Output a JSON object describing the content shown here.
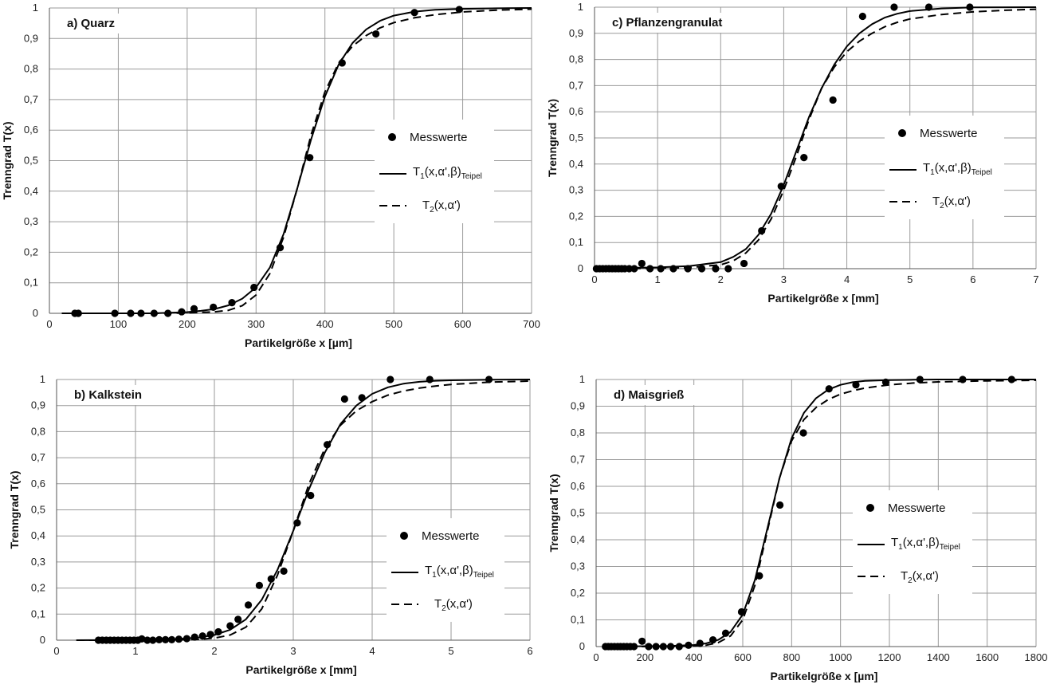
{
  "figure": {
    "legend": {
      "measured": "Messwerte",
      "t1_main": "T",
      "t1_sub": "1",
      "t1_args": "(x,α',β)",
      "t1_sub2": "Teipel",
      "t2_main": "T",
      "t2_sub": "2",
      "t2_args": "(x,α')"
    },
    "colors": {
      "line": "#000000",
      "grid": "#9a9a9a",
      "marker": "#000000"
    }
  },
  "chart_data": [
    {
      "id": "a",
      "type": "line",
      "title": "a) Quarz",
      "xlabel": "Partikelgröße x [µm]",
      "ylabel": "Trenngrad T(x)",
      "xlim": [
        0,
        700
      ],
      "ylim": [
        0,
        1
      ],
      "xticks": [
        0,
        100,
        200,
        300,
        400,
        500,
        600,
        700
      ],
      "xtick_labels": [
        "0",
        "100",
        "200",
        "300",
        "400",
        "500",
        "600",
        "700"
      ],
      "yticks": [
        0,
        0.1,
        0.2,
        0.3,
        0.4,
        0.5,
        0.6,
        0.7,
        0.8,
        0.9,
        1
      ],
      "ytick_labels": [
        "0",
        "0,1",
        "0,2",
        "0,3",
        "0,4",
        "0,5",
        "0,6",
        "0,7",
        "0,8",
        "0,9",
        "1"
      ],
      "grid": "both",
      "legend_position": "right-middle",
      "series": [
        {
          "name": "Messwerte",
          "style": "markers",
          "x": [
            37,
            42,
            95,
            118,
            133,
            152,
            172,
            192,
            210,
            238,
            265,
            297,
            335,
            378,
            425,
            474,
            530,
            595
          ],
          "y": [
            0,
            0,
            0,
            0,
            0,
            0,
            0,
            0.005,
            0.015,
            0.02,
            0.035,
            0.085,
            0.215,
            0.51,
            0.82,
            0.915,
            0.985,
            0.995
          ]
        },
        {
          "name": "T1(x,α',β)Teipel",
          "style": "solid",
          "x": [
            18,
            100,
            150,
            200,
            220,
            240,
            260,
            280,
            300,
            320,
            340,
            360,
            380,
            400,
            420,
            440,
            460,
            480,
            500,
            530,
            560,
            600,
            650,
            700
          ],
          "y": [
            0,
            0,
            0,
            0.004,
            0.008,
            0.014,
            0.026,
            0.048,
            0.085,
            0.15,
            0.26,
            0.41,
            0.57,
            0.71,
            0.815,
            0.885,
            0.93,
            0.958,
            0.975,
            0.988,
            0.994,
            0.997,
            0.999,
            1
          ]
        },
        {
          "name": "T2(x,α')",
          "style": "dashed",
          "x": [
            18,
            100,
            150,
            200,
            240,
            260,
            280,
            300,
            320,
            340,
            360,
            380,
            400,
            420,
            440,
            460,
            480,
            500,
            530,
            560,
            600,
            650,
            700
          ],
          "y": [
            0,
            0,
            0,
            0.001,
            0.005,
            0.01,
            0.025,
            0.06,
            0.13,
            0.25,
            0.41,
            0.585,
            0.725,
            0.82,
            0.875,
            0.91,
            0.935,
            0.952,
            0.968,
            0.978,
            0.987,
            0.993,
            0.996
          ]
        }
      ]
    },
    {
      "id": "b",
      "type": "line",
      "title": "b) Kalkstein",
      "xlabel": "Partikelgröße x [mm]",
      "ylabel": "Trenngrad T(x)",
      "xlim": [
        0,
        6
      ],
      "ylim": [
        0,
        1
      ],
      "xticks": [
        0,
        1,
        2,
        3,
        4,
        5,
        6
      ],
      "xtick_labels": [
        "0",
        "1",
        "2",
        "3",
        "4",
        "5",
        "6"
      ],
      "yticks": [
        0,
        0.1,
        0.2,
        0.3,
        0.4,
        0.5,
        0.6,
        0.7,
        0.8,
        0.9,
        1
      ],
      "ytick_labels": [
        "0",
        "0,1",
        "0,2",
        "0,3",
        "0,4",
        "0,5",
        "0,6",
        "0,7",
        "0,8",
        "0,9",
        "1"
      ],
      "grid": "both",
      "legend_position": "right-bottom",
      "series": [
        {
          "name": "Messwerte",
          "style": "markers",
          "x": [
            0.53,
            0.58,
            0.63,
            0.68,
            0.73,
            0.78,
            0.83,
            0.88,
            0.93,
            0.98,
            1.03,
            1.08,
            1.15,
            1.22,
            1.3,
            1.38,
            1.46,
            1.55,
            1.65,
            1.75,
            1.85,
            1.95,
            2.05,
            2.2,
            2.3,
            2.43,
            2.57,
            2.72,
            2.88,
            3.05,
            3.22,
            3.43,
            3.65,
            3.87,
            4.23,
            4.73,
            5.48
          ],
          "y": [
            0,
            0,
            0,
            0,
            0,
            0,
            0,
            0,
            0,
            0,
            0,
            0.005,
            0,
            0,
            0.002,
            0.002,
            0.002,
            0.004,
            0.006,
            0.012,
            0.016,
            0.022,
            0.032,
            0.055,
            0.08,
            0.135,
            0.21,
            0.235,
            0.265,
            0.45,
            0.555,
            0.75,
            0.925,
            0.93,
            1,
            1,
            1
          ]
        },
        {
          "name": "T1(x,α',β)Teipel",
          "style": "solid",
          "x": [
            0.25,
            1.0,
            1.5,
            1.8,
            2.0,
            2.2,
            2.4,
            2.6,
            2.8,
            3.0,
            3.2,
            3.4,
            3.6,
            3.8,
            4.0,
            4.2,
            4.4,
            4.6,
            4.8,
            5.0,
            5.5,
            6.0
          ],
          "y": [
            0,
            0.001,
            0.004,
            0.01,
            0.02,
            0.04,
            0.08,
            0.155,
            0.27,
            0.42,
            0.58,
            0.72,
            0.83,
            0.9,
            0.945,
            0.97,
            0.984,
            0.991,
            0.995,
            0.997,
            0.999,
            1
          ]
        },
        {
          "name": "T2(x,α')",
          "style": "dashed",
          "x": [
            0.25,
            1.0,
            1.5,
            1.8,
            2.0,
            2.2,
            2.4,
            2.6,
            2.8,
            3.0,
            3.2,
            3.4,
            3.6,
            3.8,
            4.0,
            4.2,
            4.4,
            4.6,
            4.8,
            5.0,
            5.5,
            6.0
          ],
          "y": [
            0,
            0,
            0.001,
            0.003,
            0.008,
            0.02,
            0.05,
            0.12,
            0.25,
            0.42,
            0.6,
            0.735,
            0.825,
            0.88,
            0.915,
            0.94,
            0.956,
            0.967,
            0.975,
            0.981,
            0.99,
            0.994
          ]
        }
      ]
    },
    {
      "id": "c",
      "type": "line",
      "title": "c) Pflanzengranulat",
      "xlabel": "Partikelgröße x [mm]",
      "ylabel": "Trenngrad T(x)",
      "xlim": [
        0,
        7
      ],
      "ylim": [
        0,
        1
      ],
      "xticks": [
        0,
        1,
        2,
        3,
        4,
        5,
        6,
        7
      ],
      "xtick_labels": [
        "0",
        "1",
        "2",
        "3",
        "4",
        "5",
        "6",
        "7"
      ],
      "yticks": [
        0,
        0.1,
        0.2,
        0.3,
        0.4,
        0.5,
        0.6,
        0.7,
        0.8,
        0.9,
        1
      ],
      "ytick_labels": [
        "0",
        "0,1",
        "0,2",
        "0,3",
        "0,4",
        "0,5",
        "0,6",
        "0,7",
        "0,8",
        "0,9",
        "1"
      ],
      "grid": "both",
      "legend_position": "right-middle",
      "series": [
        {
          "name": "Messwerte",
          "style": "markers",
          "x": [
            0.03,
            0.08,
            0.13,
            0.18,
            0.23,
            0.28,
            0.33,
            0.38,
            0.43,
            0.48,
            0.55,
            0.63,
            0.75,
            0.88,
            1.05,
            1.25,
            1.48,
            1.7,
            1.92,
            2.12,
            2.37,
            2.65,
            2.96,
            3.32,
            3.78,
            4.25,
            4.75,
            5.3,
            5.95
          ],
          "y": [
            0,
            0,
            0,
            0,
            0,
            0,
            0,
            0,
            0,
            0,
            0,
            0,
            0.02,
            0,
            0,
            0,
            0,
            0,
            0,
            0,
            0.02,
            0.145,
            0.315,
            0.425,
            0.645,
            0.965,
            1,
            1,
            1
          ]
        },
        {
          "name": "T1(x,α',β)Teipel",
          "style": "solid",
          "x": [
            0,
            1.0,
            1.5,
            2.0,
            2.2,
            2.4,
            2.6,
            2.8,
            3.0,
            3.2,
            3.4,
            3.6,
            3.8,
            4.0,
            4.2,
            4.4,
            4.6,
            4.8,
            5.0,
            5.5,
            6.0,
            7.0
          ],
          "y": [
            0.001,
            0.005,
            0.01,
            0.025,
            0.045,
            0.075,
            0.13,
            0.21,
            0.32,
            0.45,
            0.58,
            0.69,
            0.78,
            0.85,
            0.9,
            0.935,
            0.96,
            0.975,
            0.985,
            0.995,
            0.999,
            1
          ]
        },
        {
          "name": "T2(x,α')",
          "style": "dashed",
          "x": [
            0,
            1.0,
            1.5,
            2.0,
            2.2,
            2.4,
            2.6,
            2.8,
            3.0,
            3.2,
            3.4,
            3.6,
            3.8,
            4.0,
            4.2,
            4.4,
            4.6,
            4.8,
            5.0,
            5.5,
            6.0,
            6.5,
            7.0
          ],
          "y": [
            0,
            0.001,
            0.004,
            0.015,
            0.03,
            0.06,
            0.11,
            0.19,
            0.3,
            0.43,
            0.57,
            0.69,
            0.77,
            0.83,
            0.87,
            0.9,
            0.925,
            0.942,
            0.955,
            0.972,
            0.982,
            0.988,
            0.992
          ]
        }
      ]
    },
    {
      "id": "d",
      "type": "line",
      "title": "d) Maisgrieß",
      "xlabel": "Partikelgröße x [µm]",
      "ylabel": "Trenngrad T(x)",
      "xlim": [
        0,
        1800
      ],
      "ylim": [
        0,
        1
      ],
      "xticks": [
        0,
        200,
        400,
        600,
        800,
        1000,
        1200,
        1400,
        1600,
        1800
      ],
      "xtick_labels": [
        "0",
        "200",
        "400",
        "600",
        "800",
        "1000",
        "1200",
        "1400",
        "1600",
        "1800"
      ],
      "yticks": [
        0,
        0.1,
        0.2,
        0.3,
        0.4,
        0.5,
        0.6,
        0.7,
        0.8,
        0.9,
        1
      ],
      "ytick_labels": [
        "0",
        "0,1",
        "0,2",
        "0,3",
        "0,4",
        "0,5",
        "0,6",
        "0,7",
        "0,8",
        "0,9",
        "1"
      ],
      "grid": "both",
      "legend_position": "right-middle",
      "series": [
        {
          "name": "Messwerte",
          "style": "markers",
          "x": [
            38,
            50,
            62,
            75,
            88,
            100,
            113,
            126,
            140,
            155,
            188,
            215,
            245,
            275,
            305,
            340,
            378,
            425,
            478,
            530,
            595,
            668,
            752,
            848,
            953,
            1063,
            1185,
            1325,
            1500,
            1700
          ],
          "y": [
            0,
            0,
            0,
            0,
            0,
            0,
            0,
            0,
            0,
            0,
            0.02,
            0,
            0,
            0,
            0,
            0,
            0.005,
            0.012,
            0.025,
            0.05,
            0.13,
            0.265,
            0.53,
            0.8,
            0.965,
            0.98,
            0.99,
            1,
            1,
            1
          ]
        },
        {
          "name": "T1(x,α',β)Teipel",
          "style": "solid",
          "x": [
            30,
            300,
            400,
            450,
            500,
            550,
            600,
            650,
            700,
            750,
            800,
            850,
            900,
            950,
            1000,
            1050,
            1100,
            1200,
            1300,
            1400,
            1600,
            1800
          ],
          "y": [
            0,
            0.002,
            0.006,
            0.012,
            0.025,
            0.055,
            0.12,
            0.25,
            0.44,
            0.63,
            0.78,
            0.875,
            0.93,
            0.962,
            0.98,
            0.99,
            0.995,
            0.998,
            0.999,
            1,
            1,
            1
          ]
        },
        {
          "name": "T2(x,α')",
          "style": "dashed",
          "x": [
            30,
            300,
            400,
            450,
            500,
            550,
            600,
            650,
            700,
            750,
            800,
            850,
            900,
            950,
            1000,
            1050,
            1100,
            1200,
            1300,
            1400,
            1600,
            1800
          ],
          "y": [
            0,
            0,
            0.002,
            0.005,
            0.015,
            0.04,
            0.1,
            0.23,
            0.43,
            0.63,
            0.77,
            0.85,
            0.895,
            0.925,
            0.945,
            0.958,
            0.968,
            0.98,
            0.987,
            0.991,
            0.995,
            0.997
          ]
        }
      ]
    }
  ]
}
